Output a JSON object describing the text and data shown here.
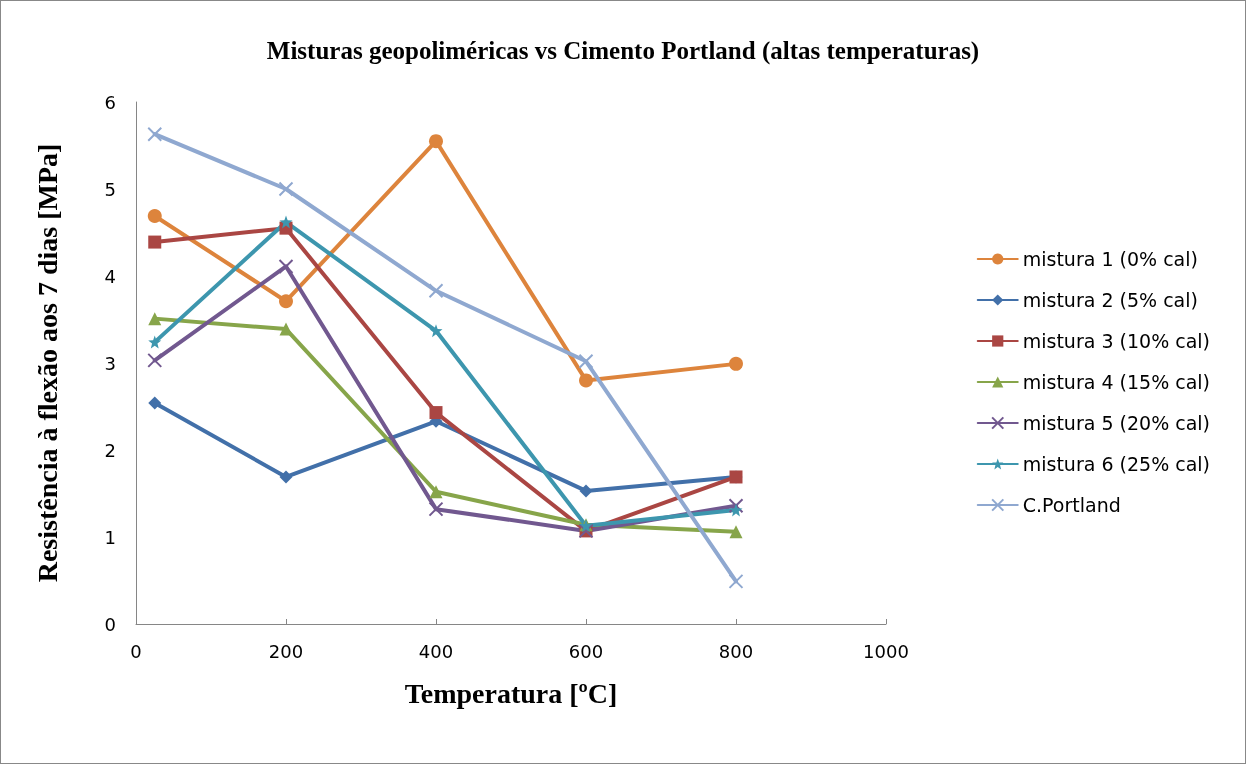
{
  "chart_data": {
    "type": "line",
    "title": "Misturas geopoliméricas vs Cimento Portland (altas temperaturas)",
    "xlabel": "Temperatura [ºC]",
    "ylabel": "Resistência à flexão aos 7 dias [MPa]",
    "x": [
      25,
      200,
      400,
      600,
      800
    ],
    "xlim": [
      0,
      1000
    ],
    "xticks": [
      0,
      200,
      400,
      600,
      800,
      1000
    ],
    "ylim": [
      0,
      6
    ],
    "yticks": [
      0,
      1,
      2,
      3,
      4,
      5,
      6
    ],
    "grid": false,
    "legend": "right",
    "series": [
      {
        "name": "mistura 1 (0% cal)",
        "color": "#dd843c",
        "marker": "circle",
        "values": [
          4.69,
          3.71,
          5.55,
          2.8,
          2.99
        ]
      },
      {
        "name": "mistura 2 (5% cal)",
        "color": "#4270a9",
        "marker": "diamond",
        "values": [
          2.54,
          1.69,
          2.33,
          1.53,
          1.69
        ]
      },
      {
        "name": "mistura 3 (10% cal)",
        "color": "#aa4643",
        "marker": "square",
        "values": [
          4.39,
          4.55,
          2.43,
          1.07,
          1.69
        ]
      },
      {
        "name": "mistura 4 (15% cal)",
        "color": "#87a54a",
        "marker": "triangle",
        "values": [
          3.51,
          3.39,
          1.52,
          1.14,
          1.06
        ]
      },
      {
        "name": "mistura 5 (20% cal)",
        "color": "#71588f",
        "marker": "cross",
        "values": [
          3.03,
          4.11,
          1.32,
          1.07,
          1.36
        ]
      },
      {
        "name": "mistura 6 (25% cal)",
        "color": "#3d96ae",
        "marker": "star",
        "values": [
          3.24,
          4.62,
          3.37,
          1.13,
          1.31
        ]
      },
      {
        "name": "C.Portland",
        "color": "#8fa8d0",
        "marker": "cross",
        "values": [
          5.63,
          5.0,
          3.83,
          3.02,
          0.49
        ]
      }
    ]
  }
}
